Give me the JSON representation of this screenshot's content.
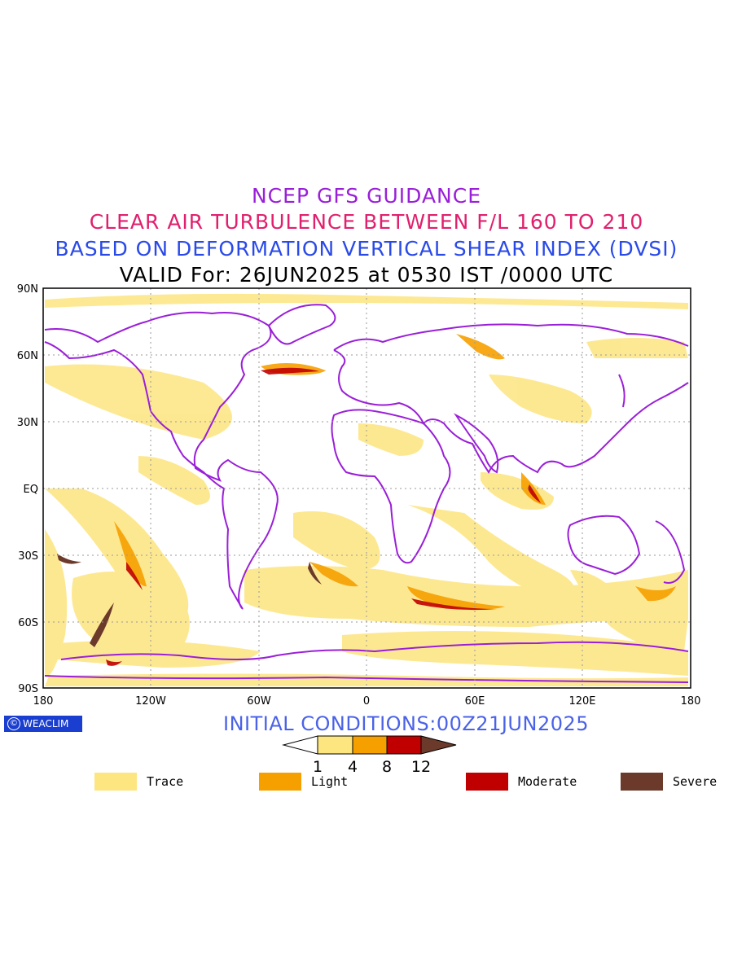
{
  "titles": {
    "line1": "NCEP GFS GUIDANCE",
    "line2": "CLEAR AIR TURBULENCE BETWEEN F/L 160 TO 210",
    "line3": "BASED ON DEFORMATION VERTICAL SHEAR INDEX (DVSI)",
    "line4": "VALID For: 26JUN2025 at 0530 IST /0000 UTC"
  },
  "map": {
    "projection": "cylindrical equidistant",
    "lon_range": [
      -180,
      180
    ],
    "lat_range": [
      -90,
      90
    ],
    "y_ticks": [
      "90N",
      "60N",
      "30N",
      "EQ",
      "30S",
      "60S",
      "90S"
    ],
    "x_ticks": [
      "180",
      "120W",
      "60W",
      "0",
      "60E",
      "120E",
      "180"
    ],
    "grid": "dotted",
    "coastline_color": "#9a1fd8"
  },
  "logo_text": "WEACLIM",
  "initial_conditions": "INITIAL CONDITIONS:00Z21JUN2025",
  "colorbar": {
    "bounds": [
      "1",
      "4",
      "8",
      "12"
    ],
    "colors": [
      "#ffffff",
      "#fde580",
      "#f6a000",
      "#c00000",
      "#6b3a2a"
    ]
  },
  "legend": [
    {
      "label": "Trace",
      "color": "#fde580"
    },
    {
      "label": "Light",
      "color": "#f6a000"
    },
    {
      "label": "Moderate",
      "color": "#c00000"
    },
    {
      "label": "Severe",
      "color": "#6b3a2a"
    }
  ]
}
